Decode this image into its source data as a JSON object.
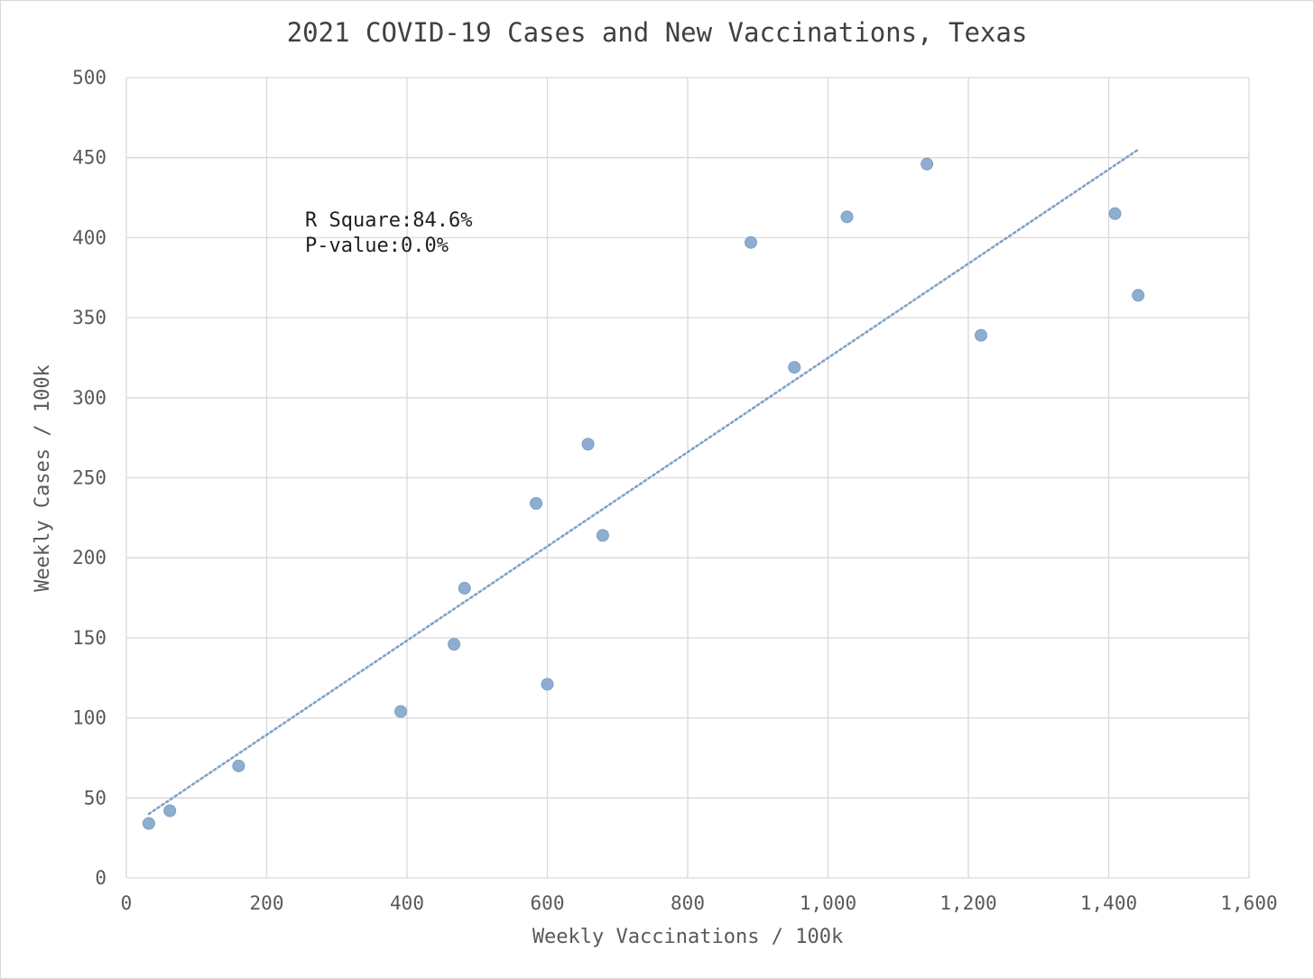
{
  "chart_data": {
    "type": "scatter",
    "title": "2021 COVID-19 Cases and New Vaccinations, Texas",
    "xlabel": "Weekly Vaccinations / 100k",
    "ylabel": "Weekly Cases / 100k",
    "xlim": [
      0,
      1600
    ],
    "ylim": [
      0,
      500
    ],
    "x_ticks": [
      0,
      200,
      400,
      600,
      800,
      1000,
      1200,
      1400,
      1600
    ],
    "x_tick_labels": [
      "0",
      "200",
      "400",
      "600",
      "800",
      "1,000",
      "1,200",
      "1,400",
      "1,600"
    ],
    "y_ticks": [
      0,
      50,
      100,
      150,
      200,
      250,
      300,
      350,
      400,
      450,
      500
    ],
    "y_tick_labels": [
      "0",
      "50",
      "100",
      "150",
      "200",
      "250",
      "300",
      "350",
      "400",
      "450",
      "500"
    ],
    "grid": true,
    "series": [
      {
        "points": [
          {
            "x": 32,
            "y": 34
          },
          {
            "x": 62,
            "y": 42
          },
          {
            "x": 160,
            "y": 70
          },
          {
            "x": 391,
            "y": 104
          },
          {
            "x": 467,
            "y": 146
          },
          {
            "x": 482,
            "y": 181
          },
          {
            "x": 584,
            "y": 234
          },
          {
            "x": 600,
            "y": 121
          },
          {
            "x": 658,
            "y": 271
          },
          {
            "x": 679,
            "y": 214
          },
          {
            "x": 890,
            "y": 397
          },
          {
            "x": 952,
            "y": 319
          },
          {
            "x": 1027,
            "y": 413
          },
          {
            "x": 1141,
            "y": 446
          },
          {
            "x": 1218,
            "y": 339
          },
          {
            "x": 1409,
            "y": 415
          },
          {
            "x": 1442,
            "y": 364
          }
        ]
      }
    ],
    "trendline": {
      "type": "linear",
      "from": {
        "x": 32,
        "y": 40
      },
      "to": {
        "x": 1442,
        "y": 455
      }
    },
    "annotations": {
      "r_square_label": "R Square:",
      "r_square_value": "84.6%",
      "p_value_label": "P-value:",
      "p_value_value": "0.0%"
    },
    "colors": {
      "marker": "#8eaed0",
      "marker_edge": "#7d9fc4",
      "trendline": "#7fa3c6",
      "grid": "#d9d9d9"
    }
  }
}
